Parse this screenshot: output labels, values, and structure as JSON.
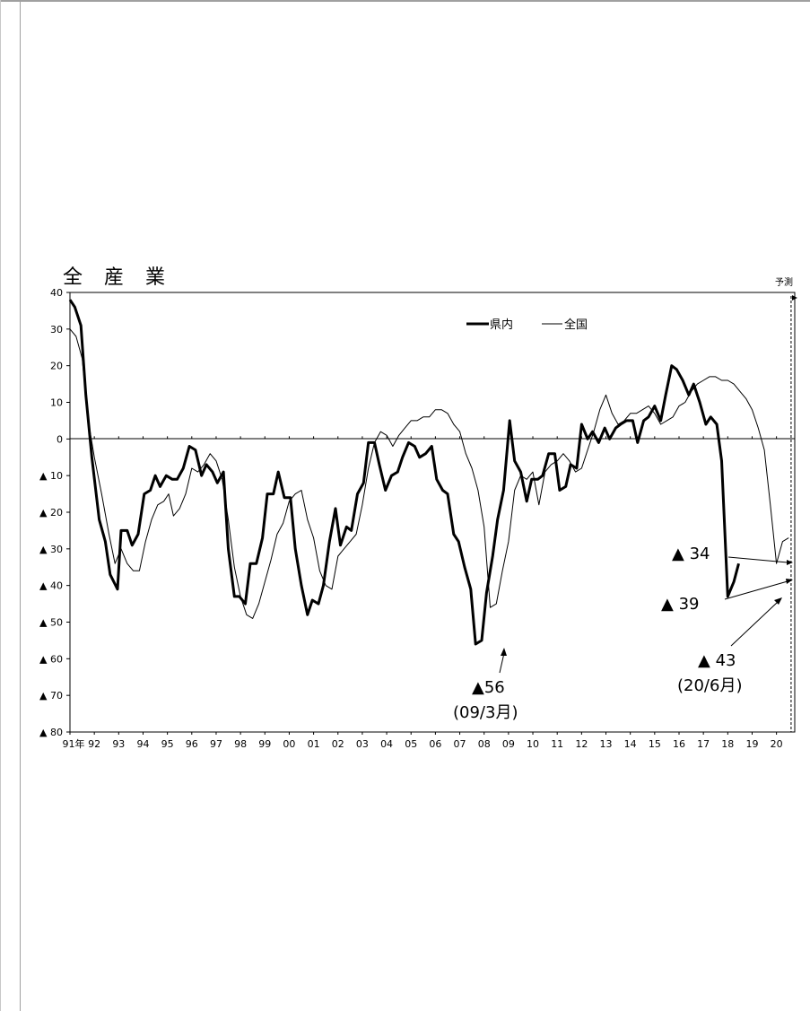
{
  "chart_data": {
    "type": "line",
    "title": "全　産　業",
    "forecast_label": "予測",
    "ylim": [
      -80,
      40
    ],
    "y_ticks": [
      {
        "value": 40,
        "label": "40"
      },
      {
        "value": 30,
        "label": "30"
      },
      {
        "value": 20,
        "label": "20"
      },
      {
        "value": 10,
        "label": "10"
      },
      {
        "value": 0,
        "label": "0"
      },
      {
        "value": -10,
        "label": "▲ 10"
      },
      {
        "value": -20,
        "label": "▲ 20"
      },
      {
        "value": -30,
        "label": "▲ 30"
      },
      {
        "value": -40,
        "label": "▲ 40"
      },
      {
        "value": -50,
        "label": "▲ 50"
      },
      {
        "value": -60,
        "label": "▲ 60"
      },
      {
        "value": -70,
        "label": "▲ 70"
      },
      {
        "value": -80,
        "label": "▲ 80"
      }
    ],
    "x_range": [
      1991.0,
      2020.75
    ],
    "x_ticks": [
      {
        "x": 1991.0,
        "label": "91年"
      },
      {
        "x": 1992.0,
        "label": "92"
      },
      {
        "x": 1993.0,
        "label": "93"
      },
      {
        "x": 1994.0,
        "label": "94"
      },
      {
        "x": 1995.0,
        "label": "95"
      },
      {
        "x": 1996.0,
        "label": "96"
      },
      {
        "x": 1997.0,
        "label": "97"
      },
      {
        "x": 1998.0,
        "label": "98"
      },
      {
        "x": 1999.0,
        "label": "99"
      },
      {
        "x": 2000.0,
        "label": "00"
      },
      {
        "x": 2001.0,
        "label": "01"
      },
      {
        "x": 2002.0,
        "label": "02"
      },
      {
        "x": 2003.0,
        "label": "03"
      },
      {
        "x": 2004.0,
        "label": "04"
      },
      {
        "x": 2005.0,
        "label": "05"
      },
      {
        "x": 2006.0,
        "label": "06"
      },
      {
        "x": 2007.0,
        "label": "07"
      },
      {
        "x": 2008.0,
        "label": "08"
      },
      {
        "x": 2009.0,
        "label": "09"
      },
      {
        "x": 2010.0,
        "label": "10"
      },
      {
        "x": 2011.0,
        "label": "11"
      },
      {
        "x": 2012.0,
        "label": "12"
      },
      {
        "x": 2013.0,
        "label": "13"
      },
      {
        "x": 2014.0,
        "label": "14"
      },
      {
        "x": 2015.0,
        "label": "15"
      },
      {
        "x": 2016.0,
        "label": "16"
      },
      {
        "x": 2017.0,
        "label": "17"
      },
      {
        "x": 2018.0,
        "label": "18"
      },
      {
        "x": 2019.0,
        "label": "19"
      },
      {
        "x": 2020.0,
        "label": "20"
      }
    ],
    "forecast_x": 2020.6,
    "legend": [
      "県内",
      "全国"
    ],
    "series": [
      {
        "name": "県内",
        "points": [
          [
            1991.0,
            38
          ],
          [
            1991.2,
            36
          ],
          [
            1991.45,
            31
          ],
          [
            1991.65,
            12
          ],
          [
            1991.9,
            -5
          ],
          [
            1992.2,
            -22
          ],
          [
            1992.45,
            -28
          ],
          [
            1992.65,
            -37
          ],
          [
            1992.95,
            -41
          ],
          [
            1993.1,
            -25
          ],
          [
            1993.35,
            -25
          ],
          [
            1993.55,
            -29
          ],
          [
            1993.8,
            -26
          ],
          [
            1994.05,
            -15
          ],
          [
            1994.3,
            -14
          ],
          [
            1994.5,
            -10
          ],
          [
            1994.7,
            -13
          ],
          [
            1994.95,
            -10
          ],
          [
            1995.2,
            -11
          ],
          [
            1995.4,
            -11
          ],
          [
            1995.65,
            -8
          ],
          [
            1995.9,
            -2
          ],
          [
            1996.15,
            -3
          ],
          [
            1996.4,
            -10
          ],
          [
            1996.6,
            -7
          ],
          [
            1996.85,
            -9
          ],
          [
            1997.05,
            -12
          ],
          [
            1997.3,
            -9
          ],
          [
            1997.5,
            -30
          ],
          [
            1997.75,
            -43
          ],
          [
            1997.95,
            -43
          ],
          [
            1998.2,
            -45
          ],
          [
            1998.4,
            -34
          ],
          [
            1998.65,
            -34
          ],
          [
            1998.9,
            -27
          ],
          [
            1999.1,
            -15
          ],
          [
            1999.35,
            -15
          ],
          [
            1999.55,
            -9
          ],
          [
            1999.8,
            -16
          ],
          [
            2000.05,
            -16
          ],
          [
            2000.25,
            -30
          ],
          [
            2000.5,
            -40
          ],
          [
            2000.75,
            -48
          ],
          [
            2000.95,
            -44
          ],
          [
            2001.2,
            -45
          ],
          [
            2001.4,
            -40
          ],
          [
            2001.65,
            -28
          ],
          [
            2001.9,
            -19
          ],
          [
            2002.1,
            -29
          ],
          [
            2002.35,
            -24
          ],
          [
            2002.55,
            -25
          ],
          [
            2002.8,
            -15
          ],
          [
            2003.05,
            -12
          ],
          [
            2003.25,
            -1
          ],
          [
            2003.5,
            -1
          ],
          [
            2003.7,
            -7
          ],
          [
            2003.95,
            -14
          ],
          [
            2004.2,
            -10
          ],
          [
            2004.45,
            -9
          ],
          [
            2004.65,
            -5
          ],
          [
            2004.9,
            -1
          ],
          [
            2005.15,
            -2
          ],
          [
            2005.35,
            -5
          ],
          [
            2005.6,
            -4
          ],
          [
            2005.85,
            -2
          ],
          [
            2006.05,
            -11
          ],
          [
            2006.3,
            -14
          ],
          [
            2006.5,
            -15
          ],
          [
            2006.75,
            -26
          ],
          [
            2006.95,
            -28
          ],
          [
            2007.2,
            -35
          ],
          [
            2007.45,
            -41
          ],
          [
            2007.65,
            -56
          ],
          [
            2007.9,
            -55
          ],
          [
            2008.1,
            -42
          ],
          [
            2008.35,
            -32
          ],
          [
            2008.55,
            -22
          ],
          [
            2008.8,
            -14
          ],
          [
            2009.05,
            5
          ],
          [
            2009.25,
            -6
          ],
          [
            2009.5,
            -9
          ],
          [
            2009.75,
            -17
          ],
          [
            2009.95,
            -11
          ],
          [
            2010.2,
            -11
          ],
          [
            2010.4,
            -10
          ],
          [
            2010.65,
            -4
          ],
          [
            2010.9,
            -4
          ],
          [
            2011.1,
            -14
          ],
          [
            2011.35,
            -13
          ],
          [
            2011.55,
            -7
          ],
          [
            2011.8,
            -8
          ],
          [
            2012.0,
            4
          ],
          [
            2012.25,
            0
          ],
          [
            2012.45,
            2
          ],
          [
            2012.7,
            -1
          ],
          [
            2012.95,
            3
          ],
          [
            2013.15,
            0
          ],
          [
            2013.4,
            3
          ],
          [
            2013.6,
            4
          ],
          [
            2013.85,
            5
          ],
          [
            2014.1,
            5
          ],
          [
            2014.3,
            -1
          ],
          [
            2014.55,
            5
          ],
          [
            2014.75,
            6
          ],
          [
            2015.0,
            9
          ],
          [
            2015.25,
            5
          ],
          [
            2015.45,
            12
          ],
          [
            2015.7,
            20
          ],
          [
            2015.9,
            19
          ],
          [
            2016.15,
            16
          ],
          [
            2016.4,
            12
          ],
          [
            2016.6,
            15
          ],
          [
            2016.85,
            10
          ],
          [
            2017.1,
            4
          ],
          [
            2017.3,
            6
          ],
          [
            2017.55,
            4
          ],
          [
            2017.75,
            -6
          ],
          [
            2018.0,
            -43
          ],
          [
            2018.25,
            -39
          ],
          [
            2018.45,
            -34
          ]
        ]
      },
      {
        "name": "全国",
        "points": [
          [
            1991.0,
            30
          ],
          [
            1991.25,
            28
          ],
          [
            1991.5,
            22
          ],
          [
            1991.75,
            5
          ],
          [
            1992.0,
            -5
          ],
          [
            1992.3,
            -15
          ],
          [
            1992.6,
            -26
          ],
          [
            1992.85,
            -34
          ],
          [
            1993.1,
            -30
          ],
          [
            1993.35,
            -34
          ],
          [
            1993.6,
            -36
          ],
          [
            1993.85,
            -36
          ],
          [
            1994.1,
            -28
          ],
          [
            1994.35,
            -22
          ],
          [
            1994.6,
            -18
          ],
          [
            1994.85,
            -17
          ],
          [
            1995.05,
            -15
          ],
          [
            1995.25,
            -21
          ],
          [
            1995.5,
            -19
          ],
          [
            1995.75,
            -15
          ],
          [
            1996.0,
            -8
          ],
          [
            1996.25,
            -9
          ],
          [
            1996.5,
            -7
          ],
          [
            1996.75,
            -4
          ],
          [
            1997.0,
            -6
          ],
          [
            1997.25,
            -11
          ],
          [
            1997.5,
            -22
          ],
          [
            1997.75,
            -35
          ],
          [
            1998.0,
            -43
          ],
          [
            1998.25,
            -48
          ],
          [
            1998.5,
            -49
          ],
          [
            1998.75,
            -45
          ],
          [
            1999.0,
            -39
          ],
          [
            1999.25,
            -33
          ],
          [
            1999.5,
            -26
          ],
          [
            1999.75,
            -23
          ],
          [
            2000.0,
            -17
          ],
          [
            2000.25,
            -15
          ],
          [
            2000.5,
            -14
          ],
          [
            2000.75,
            -22
          ],
          [
            2001.0,
            -27
          ],
          [
            2001.25,
            -36
          ],
          [
            2001.5,
            -40
          ],
          [
            2001.75,
            -41
          ],
          [
            2002.0,
            -32
          ],
          [
            2002.25,
            -30
          ],
          [
            2002.5,
            -28
          ],
          [
            2002.75,
            -26
          ],
          [
            2003.0,
            -18
          ],
          [
            2003.25,
            -8
          ],
          [
            2003.5,
            -1
          ],
          [
            2003.75,
            2
          ],
          [
            2004.0,
            1
          ],
          [
            2004.25,
            -2
          ],
          [
            2004.5,
            1
          ],
          [
            2004.75,
            3
          ],
          [
            2005.0,
            5
          ],
          [
            2005.25,
            5
          ],
          [
            2005.5,
            6
          ],
          [
            2005.75,
            6
          ],
          [
            2006.0,
            8
          ],
          [
            2006.25,
            8
          ],
          [
            2006.5,
            7
          ],
          [
            2006.75,
            4
          ],
          [
            2007.0,
            2
          ],
          [
            2007.25,
            -4
          ],
          [
            2007.5,
            -8
          ],
          [
            2007.75,
            -14
          ],
          [
            2008.0,
            -24
          ],
          [
            2008.25,
            -46
          ],
          [
            2008.5,
            -45
          ],
          [
            2008.75,
            -36
          ],
          [
            2009.0,
            -28
          ],
          [
            2009.25,
            -14
          ],
          [
            2009.5,
            -10
          ],
          [
            2009.75,
            -11
          ],
          [
            2010.0,
            -9
          ],
          [
            2010.25,
            -18
          ],
          [
            2010.5,
            -9
          ],
          [
            2010.75,
            -7
          ],
          [
            2011.0,
            -6
          ],
          [
            2011.25,
            -4
          ],
          [
            2011.5,
            -6
          ],
          [
            2011.75,
            -9
          ],
          [
            2012.0,
            -8
          ],
          [
            2012.25,
            -3
          ],
          [
            2012.5,
            2
          ],
          [
            2012.75,
            8
          ],
          [
            2013.0,
            12
          ],
          [
            2013.25,
            7
          ],
          [
            2013.5,
            4
          ],
          [
            2013.75,
            5
          ],
          [
            2014.0,
            7
          ],
          [
            2014.25,
            7
          ],
          [
            2014.5,
            8
          ],
          [
            2014.75,
            9
          ],
          [
            2015.0,
            7
          ],
          [
            2015.25,
            4
          ],
          [
            2015.5,
            5
          ],
          [
            2015.75,
            6
          ],
          [
            2016.0,
            9
          ],
          [
            2016.25,
            10
          ],
          [
            2016.5,
            13
          ],
          [
            2016.75,
            15
          ],
          [
            2017.0,
            16
          ],
          [
            2017.25,
            17
          ],
          [
            2017.5,
            17
          ],
          [
            2017.75,
            16
          ],
          [
            2018.0,
            16
          ],
          [
            2018.25,
            15
          ],
          [
            2018.5,
            13
          ],
          [
            2018.75,
            11
          ],
          [
            2019.0,
            8
          ],
          [
            2019.25,
            3
          ],
          [
            2019.5,
            -3
          ],
          [
            2019.75,
            -18
          ],
          [
            2020.0,
            -34
          ],
          [
            2020.25,
            -28
          ],
          [
            2020.5,
            -27
          ]
        ]
      }
    ],
    "annotations": [
      {
        "text": "▲56",
        "sub": "(09/3月)",
        "point": [
          2007.65,
          -56
        ]
      },
      {
        "text": "▲ 43",
        "sub": "(20/6月)",
        "point": [
          2018.0,
          -43
        ]
      },
      {
        "text": "▲ 39",
        "point": [
          2018.25,
          -39
        ]
      },
      {
        "text": "▲ 34",
        "point": [
          2018.45,
          -34
        ]
      }
    ]
  }
}
